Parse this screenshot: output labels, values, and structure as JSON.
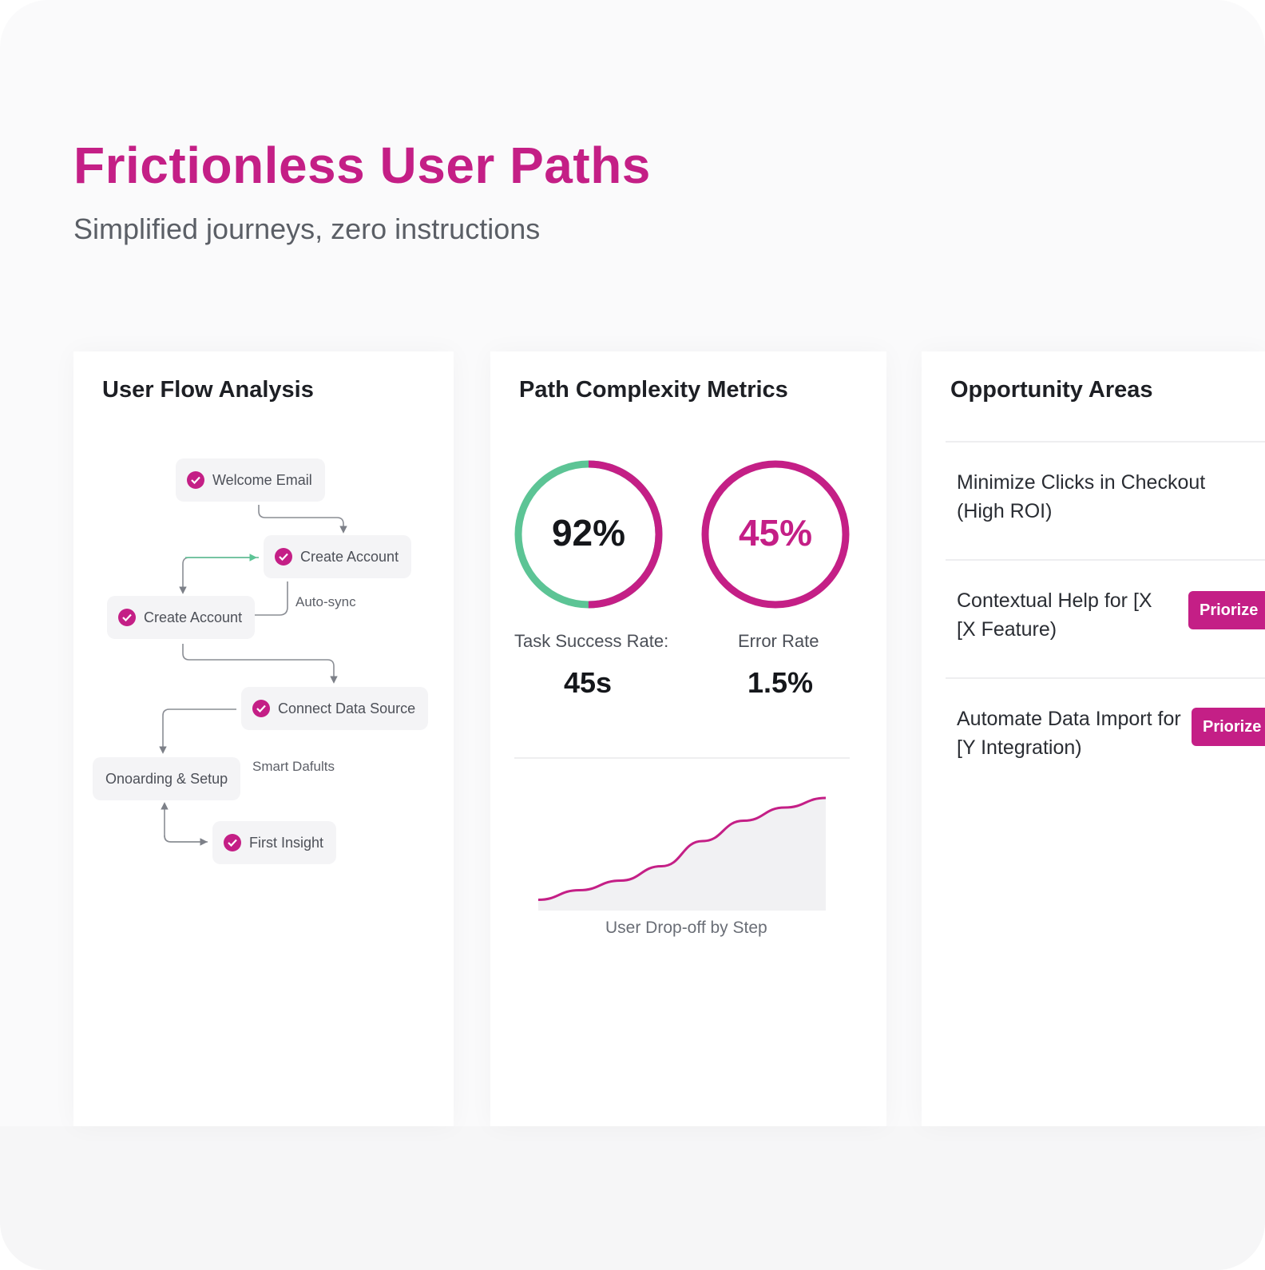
{
  "colors": {
    "accent": "#c41f86",
    "success": "#5cc495",
    "text": "#1d1f24"
  },
  "header": {
    "title": "Frictionless User Paths",
    "subtitle": "Simplified journeys, zero instructions"
  },
  "flow": {
    "title": "User Flow Analysis",
    "nodes": {
      "welcome_email": "Welcome Email",
      "create_account_1": "Create Account",
      "create_account_2": "Create Account",
      "connect_data_source": "Connect Data Source",
      "onboarding_setup": "Onoarding & Setup",
      "first_insight": "First Insight"
    },
    "notes": {
      "auto_sync": "Auto-sync",
      "smart_defaults": "Smart Dafults"
    }
  },
  "metrics": {
    "title": "Path Complexity Metrics",
    "task_success": {
      "ring_value": "92%",
      "ring_percent": 92,
      "label": "Task Success Rate:",
      "value": "45s"
    },
    "error": {
      "ring_value": "45%",
      "ring_percent": 45,
      "label": "Error Rate",
      "value": "1.5%"
    },
    "chart": {
      "caption": "User Drop-off by Step"
    }
  },
  "chart_data": {
    "type": "area",
    "title": "",
    "xlabel": "User Drop-off by Step",
    "ylabel": "",
    "x": [
      1,
      2,
      3,
      4,
      5,
      6,
      7,
      8
    ],
    "values": [
      0.09,
      0.17,
      0.25,
      0.37,
      0.58,
      0.75,
      0.86,
      0.94
    ],
    "ylim": [
      0,
      1
    ],
    "grid": false
  },
  "opportunities": {
    "title": "Opportunity Areas",
    "items": [
      {
        "text_line1": "Minimize Clicks in Checkout",
        "text_line2": "(High ROI)",
        "button": ""
      },
      {
        "text_line1": "Contextual Help for [X",
        "text_line2": "[X Feature)",
        "button": "Priorize"
      },
      {
        "text_line1": "Automate Data Import for",
        "text_line2": "[Y Integration)",
        "button": "Priorize"
      }
    ]
  }
}
